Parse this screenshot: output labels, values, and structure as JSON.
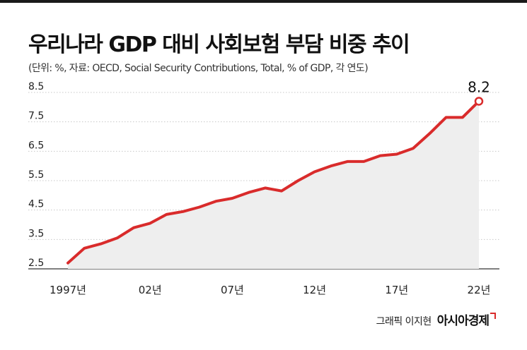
{
  "header": {
    "title": "우리나라 GDP 대비 사회보험 부담 비중 추이",
    "subtitle": "(단위: %, 자료: OECD, Social Security Contributions, Total, % of GDP, 각 연도)"
  },
  "credit": {
    "author": "그래픽 이지현",
    "brand": "아시아경제"
  },
  "chart_data": {
    "type": "area",
    "title": "우리나라 GDP 대비 사회보험 부담 비중 추이",
    "unit": "%",
    "x": [
      1997,
      1998,
      1999,
      2000,
      2001,
      2002,
      2003,
      2004,
      2005,
      2006,
      2007,
      2008,
      2009,
      2010,
      2011,
      2012,
      2013,
      2014,
      2015,
      2016,
      2017,
      2018,
      2019,
      2020,
      2021,
      2022
    ],
    "values": [
      2.7,
      3.2,
      3.35,
      3.55,
      3.9,
      4.05,
      4.35,
      4.45,
      4.6,
      4.8,
      4.9,
      5.1,
      5.25,
      5.15,
      5.5,
      5.8,
      6.0,
      6.15,
      6.15,
      6.35,
      6.4,
      6.6,
      7.1,
      7.65,
      7.65,
      8.2
    ],
    "x_tick_labels": [
      {
        "x": 1997,
        "label": "1997년"
      },
      {
        "x": 2002,
        "label": "02년"
      },
      {
        "x": 2007,
        "label": "07년"
      },
      {
        "x": 2012,
        "label": "12년"
      },
      {
        "x": 2017,
        "label": "17년"
      },
      {
        "x": 2022,
        "label": "22년"
      }
    ],
    "y_ticks": [
      2.5,
      3.5,
      4.5,
      5.5,
      6.5,
      7.5,
      8.5
    ],
    "ylim": [
      2.5,
      8.5
    ],
    "grid": true,
    "annotation": {
      "x": 2022,
      "value": 8.2,
      "label": "8.2"
    },
    "colors": {
      "line": "#d92b2b",
      "fill": "#eeeeee",
      "grid": "#c8c8c8"
    }
  }
}
